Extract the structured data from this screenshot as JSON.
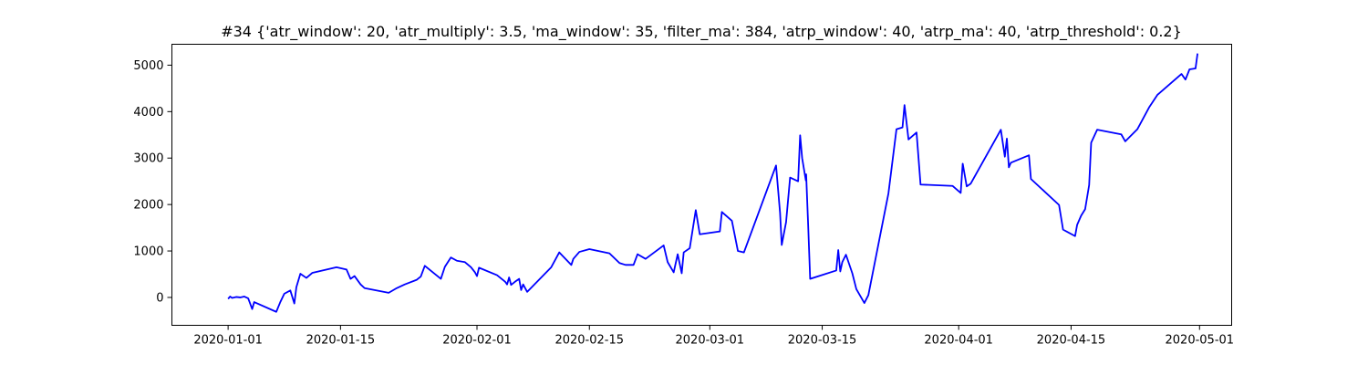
{
  "chart_data": {
    "type": "line",
    "title": "#34 {'atr_window': 20, 'atr_multiply': 3.5, 'ma_window': 35, 'filter_ma': 384, 'atrp_window': 40, 'atrp_ma': 40, 'atrp_threshold': 0.2}",
    "xlabel": "",
    "ylabel": "",
    "x_axis": "date",
    "xlim": [
      "2019-12-25",
      "2020-05-05"
    ],
    "ylim": [
      -600,
      5450
    ],
    "grid": false,
    "color": "#0000ff",
    "x_ticks": [
      {
        "date": "2020-01-01",
        "label": "2020-01-01"
      },
      {
        "date": "2020-01-15",
        "label": "2020-01-15"
      },
      {
        "date": "2020-02-01",
        "label": "2020-02-01"
      },
      {
        "date": "2020-02-15",
        "label": "2020-02-15"
      },
      {
        "date": "2020-03-01",
        "label": "2020-03-01"
      },
      {
        "date": "2020-03-15",
        "label": "2020-03-15"
      },
      {
        "date": "2020-04-01",
        "label": "2020-04-01"
      },
      {
        "date": "2020-04-15",
        "label": "2020-04-15"
      },
      {
        "date": "2020-05-01",
        "label": "2020-05-01"
      }
    ],
    "y_ticks": [
      {
        "value": 0,
        "label": "0"
      },
      {
        "value": 1000,
        "label": "1000"
      },
      {
        "value": 2000,
        "label": "2000"
      },
      {
        "value": 3000,
        "label": "3000"
      },
      {
        "value": 4000,
        "label": "4000"
      },
      {
        "value": 5000,
        "label": "5000"
      }
    ],
    "series": [
      {
        "points": [
          [
            "2020-01-01T00:00",
            -30
          ],
          [
            "2020-01-01T06:00",
            20
          ],
          [
            "2020-01-01T12:00",
            -10
          ],
          [
            "2020-01-02T00:00",
            10
          ],
          [
            "2020-01-02T12:00",
            0
          ],
          [
            "2020-01-03T00:00",
            20
          ],
          [
            "2020-01-03T12:00",
            -20
          ],
          [
            "2020-01-04T00:00",
            -250
          ],
          [
            "2020-01-04T06:00",
            -100
          ],
          [
            "2020-01-07T00:00",
            -310
          ],
          [
            "2020-01-07T12:00",
            -100
          ],
          [
            "2020-01-08T00:00",
            80
          ],
          [
            "2020-01-08T18:00",
            150
          ],
          [
            "2020-01-09T06:00",
            -130
          ],
          [
            "2020-01-09T12:00",
            220
          ],
          [
            "2020-01-10T00:00",
            510
          ],
          [
            "2020-01-10T18:00",
            420
          ],
          [
            "2020-01-11T12:00",
            530
          ],
          [
            "2020-01-14T12:00",
            650
          ],
          [
            "2020-01-15T18:00",
            600
          ],
          [
            "2020-01-16T06:00",
            400
          ],
          [
            "2020-01-16T18:00",
            460
          ],
          [
            "2020-01-17T12:00",
            280
          ],
          [
            "2020-01-18T00:00",
            200
          ],
          [
            "2020-01-21T00:00",
            100
          ],
          [
            "2020-01-22T00:00",
            200
          ],
          [
            "2020-01-23T00:00",
            280
          ],
          [
            "2020-01-24T12:00",
            380
          ],
          [
            "2020-01-25T00:00",
            450
          ],
          [
            "2020-01-25T12:00",
            680
          ],
          [
            "2020-01-27T12:00",
            400
          ],
          [
            "2020-01-28T00:00",
            660
          ],
          [
            "2020-01-28T18:00",
            860
          ],
          [
            "2020-01-29T12:00",
            790
          ],
          [
            "2020-01-30T12:00",
            760
          ],
          [
            "2020-01-31T06:00",
            650
          ],
          [
            "2020-01-31T18:00",
            540
          ],
          [
            "2020-02-01T00:00",
            460
          ],
          [
            "2020-02-01T06:00",
            640
          ],
          [
            "2020-02-03T12:00",
            480
          ],
          [
            "2020-02-04T12:00",
            340
          ],
          [
            "2020-02-04T18:00",
            280
          ],
          [
            "2020-02-05T00:00",
            430
          ],
          [
            "2020-02-05T06:00",
            270
          ],
          [
            "2020-02-05T18:00",
            340
          ],
          [
            "2020-02-06T06:00",
            400
          ],
          [
            "2020-02-06T12:00",
            160
          ],
          [
            "2020-02-06T18:00",
            280
          ],
          [
            "2020-02-07T06:00",
            120
          ],
          [
            "2020-02-10T06:00",
            650
          ],
          [
            "2020-02-11T06:00",
            970
          ],
          [
            "2020-02-12T18:00",
            700
          ],
          [
            "2020-02-13T00:00",
            830
          ],
          [
            "2020-02-13T18:00",
            980
          ],
          [
            "2020-02-15T00:00",
            1040
          ],
          [
            "2020-02-17T12:00",
            950
          ],
          [
            "2020-02-18T18:00",
            740
          ],
          [
            "2020-02-19T12:00",
            700
          ],
          [
            "2020-02-20T12:00",
            700
          ],
          [
            "2020-02-21T00:00",
            930
          ],
          [
            "2020-02-22T00:00",
            830
          ],
          [
            "2020-02-24T06:00",
            1120
          ],
          [
            "2020-02-24T18:00",
            760
          ],
          [
            "2020-02-25T12:00",
            540
          ],
          [
            "2020-02-26T00:00",
            930
          ],
          [
            "2020-02-26T12:00",
            520
          ],
          [
            "2020-02-26T18:00",
            970
          ],
          [
            "2020-02-27T12:00",
            1060
          ],
          [
            "2020-02-28T06:00",
            1880
          ],
          [
            "2020-02-28T18:00",
            1360
          ],
          [
            "2020-03-02T06:00",
            1420
          ],
          [
            "2020-03-02T12:00",
            1840
          ],
          [
            "2020-03-03T18:00",
            1650
          ],
          [
            "2020-03-04T12:00",
            1000
          ],
          [
            "2020-03-05T06:00",
            970
          ],
          [
            "2020-03-09T06:00",
            2840
          ],
          [
            "2020-03-09T18:00",
            1820
          ],
          [
            "2020-03-09T23:00",
            1130
          ],
          [
            "2020-03-10T12:00",
            1620
          ],
          [
            "2020-03-11T00:00",
            2580
          ],
          [
            "2020-03-12T00:00",
            2500
          ],
          [
            "2020-03-12T06:00",
            3490
          ],
          [
            "2020-03-12T12:00",
            3000
          ],
          [
            "2020-03-12T23:00",
            2520
          ],
          [
            "2020-03-13T00:00",
            2650
          ],
          [
            "2020-03-13T06:00",
            1560
          ],
          [
            "2020-03-13T12:00",
            400
          ],
          [
            "2020-03-16T18:00",
            580
          ],
          [
            "2020-03-17T00:00",
            1020
          ],
          [
            "2020-03-17T06:00",
            560
          ],
          [
            "2020-03-17T12:00",
            760
          ],
          [
            "2020-03-17T23:00",
            920
          ],
          [
            "2020-03-18T18:00",
            520
          ],
          [
            "2020-03-19T06:00",
            180
          ],
          [
            "2020-03-20T06:00",
            -120
          ],
          [
            "2020-03-20T18:00",
            50
          ],
          [
            "2020-03-23T06:00",
            2240
          ],
          [
            "2020-03-24T06:00",
            3620
          ],
          [
            "2020-03-25T00:00",
            3660
          ],
          [
            "2020-03-25T06:00",
            4140
          ],
          [
            "2020-03-25T18:00",
            3400
          ],
          [
            "2020-03-26T18:00",
            3550
          ],
          [
            "2020-03-27T06:00",
            2430
          ],
          [
            "2020-03-31T06:00",
            2400
          ],
          [
            "2020-04-01T06:00",
            2250
          ],
          [
            "2020-04-01T12:00",
            2880
          ],
          [
            "2020-04-02T00:00",
            2390
          ],
          [
            "2020-04-02T12:00",
            2450
          ],
          [
            "2020-04-06T06:00",
            3610
          ],
          [
            "2020-04-06T18:00",
            3030
          ],
          [
            "2020-04-07T00:00",
            3420
          ],
          [
            "2020-04-07T06:00",
            2800
          ],
          [
            "2020-04-07T12:00",
            2900
          ],
          [
            "2020-04-09T18:00",
            3060
          ],
          [
            "2020-04-10T00:00",
            2550
          ],
          [
            "2020-04-13T12:00",
            1990
          ],
          [
            "2020-04-14T00:00",
            1460
          ],
          [
            "2020-04-15T12:00",
            1320
          ],
          [
            "2020-04-15T18:00",
            1560
          ],
          [
            "2020-04-16T06:00",
            1760
          ],
          [
            "2020-04-16T18:00",
            1900
          ],
          [
            "2020-04-17T06:00",
            2420
          ],
          [
            "2020-04-17T12:00",
            3330
          ],
          [
            "2020-04-18T06:00",
            3610
          ],
          [
            "2020-04-21T06:00",
            3510
          ],
          [
            "2020-04-21T18:00",
            3360
          ],
          [
            "2020-04-23T06:00",
            3620
          ],
          [
            "2020-04-24T18:00",
            4100
          ],
          [
            "2020-04-25T18:00",
            4360
          ],
          [
            "2020-04-28T18:00",
            4810
          ],
          [
            "2020-04-29T06:00",
            4690
          ],
          [
            "2020-04-29T18:00",
            4910
          ],
          [
            "2020-04-30T12:00",
            4930
          ],
          [
            "2020-04-30T18:00",
            5250
          ]
        ]
      }
    ]
  }
}
